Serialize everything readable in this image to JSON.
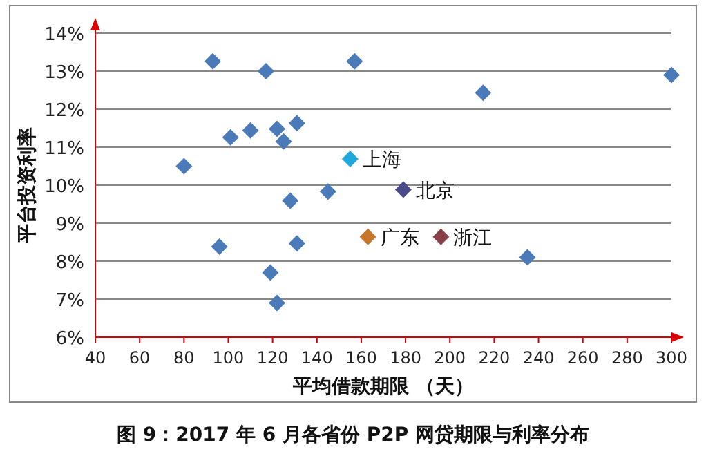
{
  "chart_data": {
    "type": "scatter",
    "title": "图 9：2017 年 6 月各省份 P2P 网贷期限与利率分布",
    "xlabel": "平均借款期限 （天）",
    "ylabel": "平台投资利率",
    "xlim": [
      40,
      300
    ],
    "xticks": [
      40,
      60,
      80,
      100,
      120,
      140,
      160,
      180,
      200,
      220,
      240,
      260,
      280,
      300
    ],
    "ylim": [
      6,
      14
    ],
    "yticks": [
      {
        "value": 6,
        "label": "6%"
      },
      {
        "value": 7,
        "label": "7%"
      },
      {
        "value": 8,
        "label": "8%"
      },
      {
        "value": 9,
        "label": "9%"
      },
      {
        "value": 10,
        "label": "10%"
      },
      {
        "value": 11,
        "label": "11%"
      },
      {
        "value": 12,
        "label": "12%"
      },
      {
        "value": 13,
        "label": "13%"
      },
      {
        "value": 14,
        "label": "14%"
      }
    ],
    "grid": "y",
    "legend": false,
    "marker": "diamond",
    "series": [
      {
        "color": "#4a7ab8",
        "x": [
          93,
          117,
          157,
          101,
          110,
          122,
          125,
          131,
          80,
          145,
          128,
          131,
          96,
          119,
          122,
          215,
          300,
          235
        ],
        "values": [
          13.26,
          13.0,
          13.26,
          11.26,
          11.44,
          11.48,
          11.15,
          11.63,
          10.5,
          9.83,
          9.59,
          8.47,
          8.38,
          7.7,
          6.9,
          12.43,
          12.9,
          8.1
        ]
      },
      {
        "name": "上海",
        "color": "#1fa8dc",
        "x": [
          155
        ],
        "values": [
          10.69
        ]
      },
      {
        "name": "北京",
        "color": "#4b4a8a",
        "x": [
          179
        ],
        "values": [
          9.88
        ]
      },
      {
        "name": "广东",
        "color": "#c7762c",
        "x": [
          163
        ],
        "values": [
          8.64
        ]
      },
      {
        "name": "浙江",
        "color": "#8b4049",
        "x": [
          196
        ],
        "values": [
          8.64
        ]
      }
    ]
  }
}
